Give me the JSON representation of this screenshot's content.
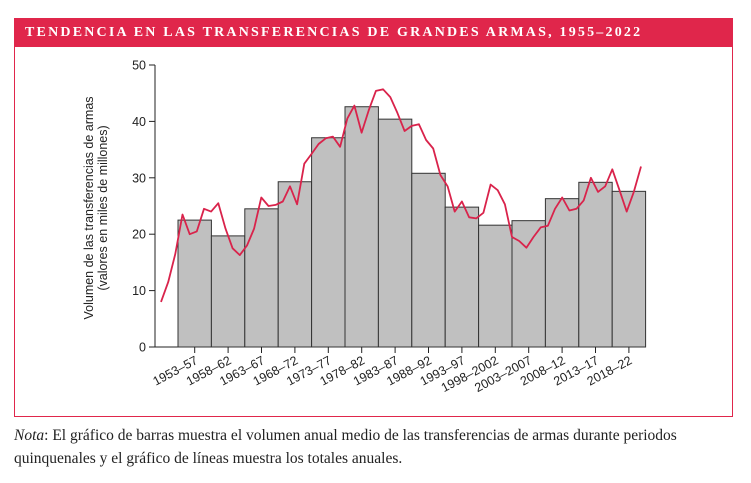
{
  "title": "TENDENCIA EN LAS TRANSFERENCIAS DE GRANDES ARMAS, 1955–2022",
  "chart_data": {
    "type": "bar_line",
    "ylabel": [
      "Volumen de las transferencias de armas",
      "(valores en miles de millones)"
    ],
    "categories": [
      "1953–57",
      "1958–62",
      "1963–67",
      "1968–72",
      "1973–77",
      "1978–82",
      "1983–87",
      "1988–92",
      "1993–97",
      "1998–2002",
      "2003–2007",
      "2008–12",
      "2013–17",
      "2018–22"
    ],
    "values": [
      22.5,
      19.7,
      24.5,
      29.3,
      37.1,
      42.6,
      40.4,
      30.8,
      24.8,
      21.6,
      22.4,
      26.3,
      29.2,
      27.6
    ],
    "bar_color": "#c0c0c0",
    "line_values": [
      8,
      11.5,
      16.5,
      23.5,
      20,
      20.5,
      24.5,
      24,
      25.5,
      21,
      17.5,
      16.3,
      18,
      21,
      26.5,
      25,
      25.2,
      25.8,
      28.5,
      25.3,
      32.5,
      34.2,
      36,
      37,
      37.3,
      35.5,
      40.5,
      42.8,
      38,
      42,
      45.4,
      45.7,
      44.3,
      41.5,
      38.3,
      39.2,
      39.5,
      36.7,
      35.2,
      30.5,
      28.5,
      24,
      25.8,
      23,
      22.8,
      23.8,
      28.8,
      27.8,
      25.3,
      19.5,
      18.8,
      17.6,
      19.5,
      21.2,
      21.5,
      24.5,
      26.5,
      24.2,
      24.5,
      26,
      30,
      27.5,
      28.5,
      31.5,
      27.8,
      24,
      27.5,
      32
    ],
    "line_color": "#d9234b",
    "ylim": [
      0,
      50
    ],
    "yticks": [
      0,
      10,
      20,
      30,
      40,
      50
    ]
  },
  "note": {
    "label": "Nota",
    "text": ": El gráfico de barras muestra el volumen anual medio de las transferencias de armas durante periodos quinquenales y el gráfico de líneas muestra los totales anuales."
  }
}
